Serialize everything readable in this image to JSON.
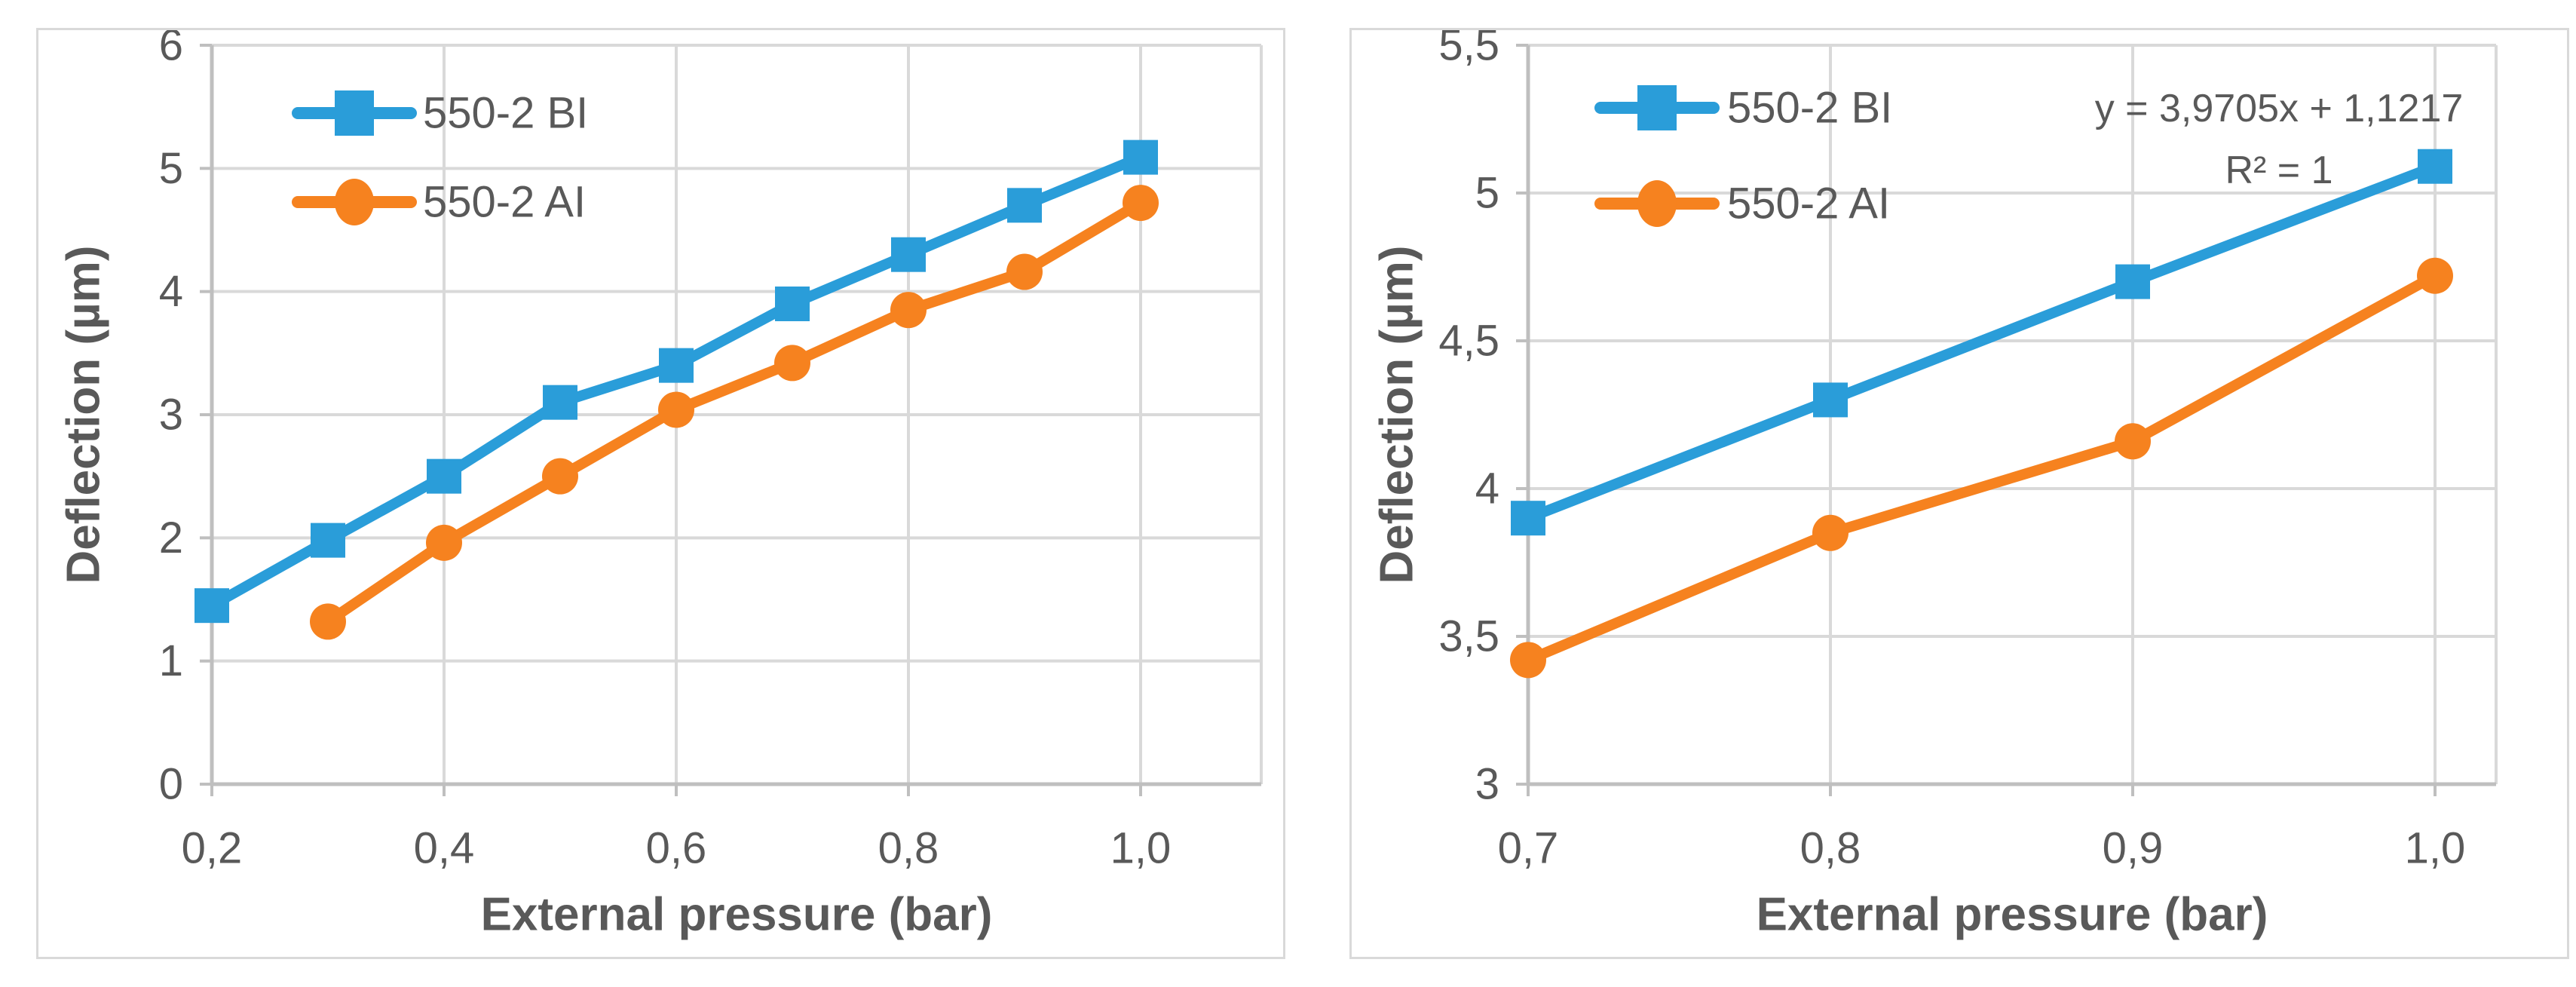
{
  "colors": {
    "blue": "#2A9DD9",
    "orange": "#F6821F",
    "grid": "#D9D9D9",
    "axis": "#BFBFBF",
    "text": "#595959"
  },
  "chart_data": [
    {
      "id": "left",
      "type": "line",
      "title": "",
      "xlabel": "External pressure (bar)",
      "ylabel": "Deflection  (µm)",
      "x": [
        0.2,
        0.3,
        0.4,
        0.5,
        0.6,
        0.7,
        0.8,
        0.9,
        1.0
      ],
      "xticks": [
        {
          "i": 0,
          "label": "0,2"
        },
        {
          "i": 2,
          "label": "0,4"
        },
        {
          "i": 4,
          "label": "0,6"
        },
        {
          "i": 6,
          "label": "0,8"
        },
        {
          "i": 8,
          "label": "1,0"
        }
      ],
      "ylim": [
        0,
        6
      ],
      "yticks": [
        {
          "v": 0,
          "label": "0"
        },
        {
          "v": 1,
          "label": "1"
        },
        {
          "v": 2,
          "label": "2"
        },
        {
          "v": 3,
          "label": "3"
        },
        {
          "v": 4,
          "label": "4"
        },
        {
          "v": 5,
          "label": "5"
        },
        {
          "v": 6,
          "label": "6"
        }
      ],
      "grid": "both",
      "legend_position": "top-left-inside",
      "series": [
        {
          "name": "550-2 BI",
          "color": "blue",
          "marker": "square",
          "values": [
            1.45,
            1.98,
            2.5,
            3.1,
            3.4,
            3.9,
            4.3,
            4.7,
            5.09
          ]
        },
        {
          "name": "550-2 AI",
          "color": "orange",
          "marker": "circle",
          "values": [
            null,
            1.32,
            1.96,
            2.5,
            3.04,
            3.42,
            3.85,
            4.16,
            4.72
          ]
        }
      ]
    },
    {
      "id": "right",
      "type": "line",
      "title": "",
      "xlabel": "External pressure (bar)",
      "ylabel": "Deflection  (µm)",
      "x": [
        0.7,
        0.8,
        0.9,
        1.0
      ],
      "xticks": [
        {
          "i": 0,
          "label": "0,7"
        },
        {
          "i": 1,
          "label": "0,8"
        },
        {
          "i": 2,
          "label": "0,9"
        },
        {
          "i": 3,
          "label": "1,0"
        }
      ],
      "ylim": [
        3,
        5.5
      ],
      "yticks": [
        {
          "v": 3,
          "label": "3"
        },
        {
          "v": 3.5,
          "label": "3,5"
        },
        {
          "v": 4,
          "label": "4"
        },
        {
          "v": 4.5,
          "label": "4,5"
        },
        {
          "v": 5,
          "label": "5"
        },
        {
          "v": 5.5,
          "label": "5,5"
        }
      ],
      "grid": "both",
      "legend_position": "top-left-inside",
      "annotation": {
        "equation": "y = 3,9705x + 1,1217",
        "r_squared": "R² = 1"
      },
      "series": [
        {
          "name": "550-2 BI",
          "color": "blue",
          "marker": "square",
          "values": [
            3.9,
            4.3,
            4.7,
            5.09
          ]
        },
        {
          "name": "550-2 AI",
          "color": "orange",
          "marker": "circle",
          "values": [
            3.42,
            3.85,
            4.16,
            4.72
          ]
        }
      ]
    }
  ]
}
